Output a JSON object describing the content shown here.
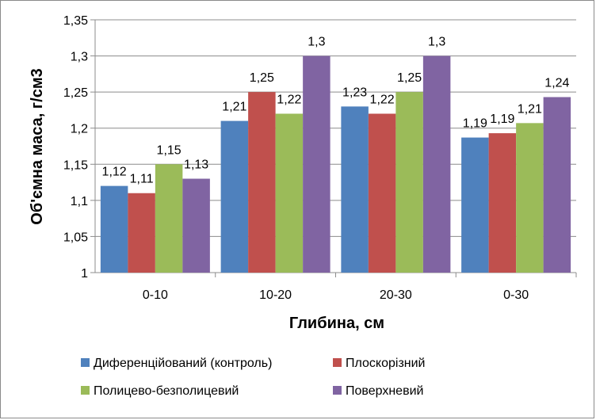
{
  "chart_data": {
    "type": "bar",
    "xlabel": "Глибина, см",
    "ylabel": "Об'ємна маса, г/см3",
    "ylim": [
      1,
      1.35
    ],
    "yticks": [
      "1",
      "1,05",
      "1,1",
      "1,15",
      "1,2",
      "1,25",
      "1,3",
      "1,35"
    ],
    "grid": true,
    "legend_position": "bottom",
    "categories": [
      "0-10",
      "10-20",
      "20-30",
      "0-30"
    ],
    "series": [
      {
        "name": "Диференційований (контроль)",
        "color": "#4F81BD",
        "values": [
          1.12,
          1.21,
          1.23,
          1.187
        ],
        "labels": [
          "1,12",
          "1,21",
          "1,23",
          "1,19"
        ]
      },
      {
        "name": "Плоскорізний",
        "color": "#C0504D",
        "values": [
          1.11,
          1.25,
          1.22,
          1.193
        ],
        "labels": [
          "1,11",
          "1,25",
          "1,22",
          "1,19"
        ]
      },
      {
        "name": "Полицево-безполицевий",
        "color": "#9BBB59",
        "values": [
          1.15,
          1.22,
          1.25,
          1.207
        ],
        "labels": [
          "1,15",
          "1,22",
          "1,25",
          "1,21"
        ]
      },
      {
        "name": "Поверхневий",
        "color": "#8064A2",
        "values": [
          1.13,
          1.3,
          1.3,
          1.243
        ],
        "labels": [
          "1,13",
          "1,3",
          "1,3",
          "1,24"
        ]
      }
    ]
  }
}
